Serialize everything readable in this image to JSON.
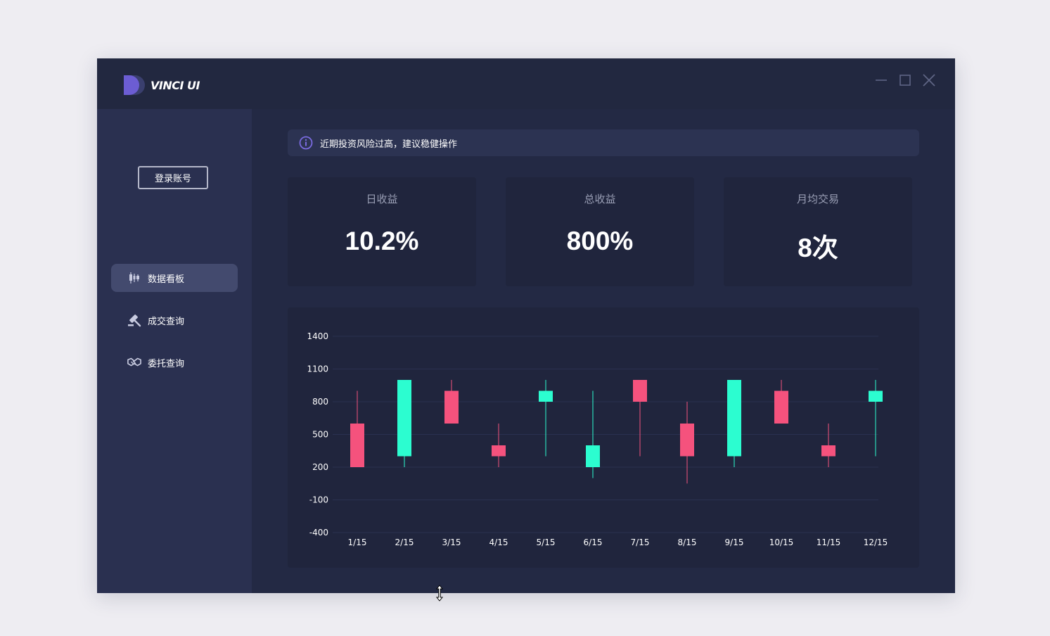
{
  "app": {
    "title": "VINCI UI",
    "colors": {
      "accent": "#6c5dd3",
      "up": "#2cfdd0",
      "down": "#f5527d",
      "window": "#232944",
      "sidebar": "#2a3050"
    }
  },
  "window_controls": [
    {
      "icon": "minimize-icon"
    },
    {
      "icon": "maximize-icon"
    },
    {
      "icon": "close-icon"
    }
  ],
  "sidebar": {
    "login_label": "登录账号",
    "items": [
      {
        "label": "数据看板",
        "icon": "candlestick-icon",
        "active": true
      },
      {
        "label": "成交查询",
        "icon": "gavel-icon",
        "active": false
      },
      {
        "label": "委托查询",
        "icon": "handshake-icon",
        "active": false
      }
    ]
  },
  "alert": {
    "text": "近期投资风险过高，建议稳健操作",
    "icon": "info-icon"
  },
  "stats": [
    {
      "label": "日收益",
      "value": "10.2%"
    },
    {
      "label": "总收益",
      "value": "800%"
    },
    {
      "label": "月均交易",
      "value": "8次"
    }
  ],
  "chart_data": {
    "type": "candlestick",
    "categories": [
      "1/15",
      "2/15",
      "3/15",
      "4/15",
      "5/15",
      "6/15",
      "7/15",
      "8/15",
      "9/15",
      "10/15",
      "11/15",
      "12/15"
    ],
    "y_ticks": [
      1400,
      1100,
      800,
      500,
      200,
      -100,
      -400
    ],
    "ylim": [
      -400,
      1400
    ],
    "grid": true,
    "candles": [
      {
        "open": 600,
        "close": 200,
        "high": 900,
        "low": 200
      },
      {
        "open": 300,
        "close": 1000,
        "high": 1000,
        "low": 200
      },
      {
        "open": 900,
        "close": 600,
        "high": 1000,
        "low": 600
      },
      {
        "open": 400,
        "close": 300,
        "high": 600,
        "low": 200
      },
      {
        "open": 800,
        "close": 900,
        "high": 1000,
        "low": 300
      },
      {
        "open": 200,
        "close": 400,
        "high": 900,
        "low": 100
      },
      {
        "open": 1000,
        "close": 800,
        "high": 1000,
        "low": 300
      },
      {
        "open": 600,
        "close": 300,
        "high": 800,
        "low": 50
      },
      {
        "open": 300,
        "close": 1000,
        "high": 1000,
        "low": 200
      },
      {
        "open": 900,
        "close": 600,
        "high": 1000,
        "low": 600
      },
      {
        "open": 400,
        "close": 300,
        "high": 600,
        "low": 200
      },
      {
        "open": 800,
        "close": 900,
        "high": 1000,
        "low": 300
      }
    ]
  }
}
